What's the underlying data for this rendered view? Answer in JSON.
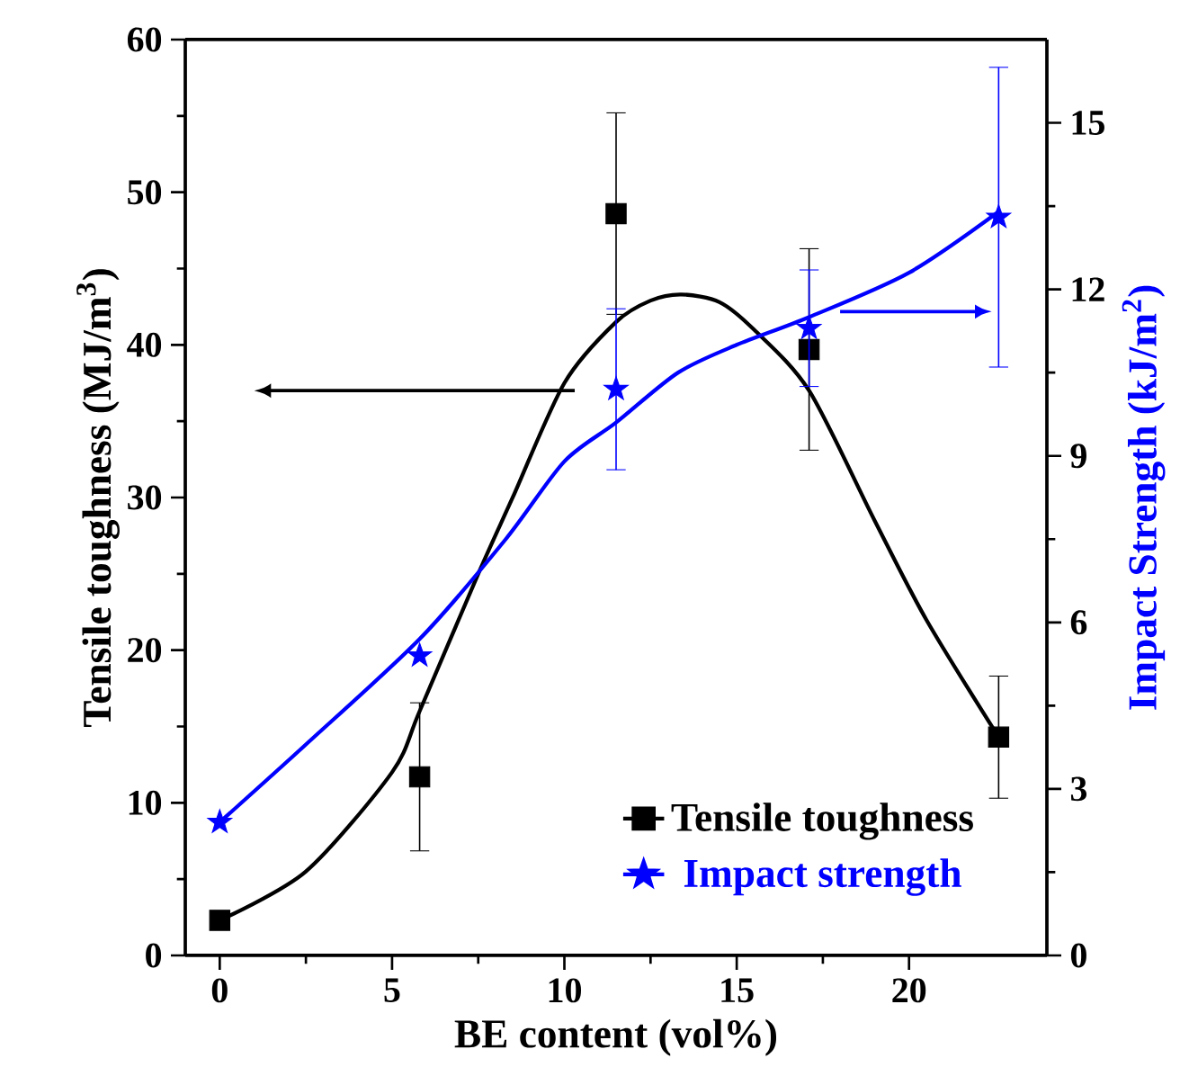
{
  "chart_data": {
    "type": "scatter",
    "xlabel": "BE content (vol%)",
    "ylabel": "Tensile toughness (MJ/m$^{3}$)",
    "y2label": "Impact Strength (kJ/m$^{2}$)",
    "xlim": [
      -1,
      24
    ],
    "xticks": [
      0,
      5,
      10,
      15,
      20
    ],
    "ylim": [
      0,
      60
    ],
    "yticks": [
      0,
      10,
      20,
      30,
      40,
      50,
      60
    ],
    "y2lim": [
      0,
      16.5
    ],
    "y2ticks": [
      0,
      3,
      6,
      9,
      12,
      15
    ],
    "legend": "bottom right",
    "grid": false,
    "series": [
      {
        "name": "Tensile toughness",
        "marker": "square",
        "color": "#000000",
        "x": [
          0,
          5.8,
          11.5,
          17.1,
          22.6
        ],
        "values": [
          2.3,
          11.7,
          48.6,
          39.7,
          14.3
        ],
        "errors": [
          null,
          4.85,
          6.6,
          6.6,
          4.0
        ]
      },
      {
        "name": "Impact strength",
        "marker": "star",
        "color": "#0000ff",
        "axis": "y2",
        "x": [
          0,
          5.8,
          11.5,
          17.1,
          22.6
        ],
        "values": [
          2.4,
          5.4,
          10.2,
          11.3,
          13.3
        ],
        "errors": [
          null,
          null,
          1.45,
          1.05,
          2.7
        ]
      },
      {
        "type": "line",
        "color": "#000000",
        "x": [
          0,
          2.5,
          5,
          5.8,
          7.5,
          8.5,
          10,
          11.5,
          12.5,
          13.4,
          14.5,
          15.5,
          17.1,
          19,
          20.5,
          22.6
        ],
        "values": [
          2.3,
          5.5,
          12,
          16,
          25,
          30,
          37.5,
          41.5,
          42.9,
          43.3,
          42.8,
          41,
          37,
          28.5,
          22,
          14.3
        ]
      },
      {
        "type": "line",
        "color": "#0000ff",
        "axis": "y2",
        "x": [
          0,
          2.5,
          5.8,
          8.3,
          10,
          11.5,
          13.3,
          15,
          17.1,
          20,
          22.6
        ],
        "values": [
          2.4,
          3.8,
          5.7,
          7.5,
          8.9,
          9.6,
          10.5,
          11.0,
          11.5,
          12.3,
          13.4
        ]
      }
    ]
  }
}
